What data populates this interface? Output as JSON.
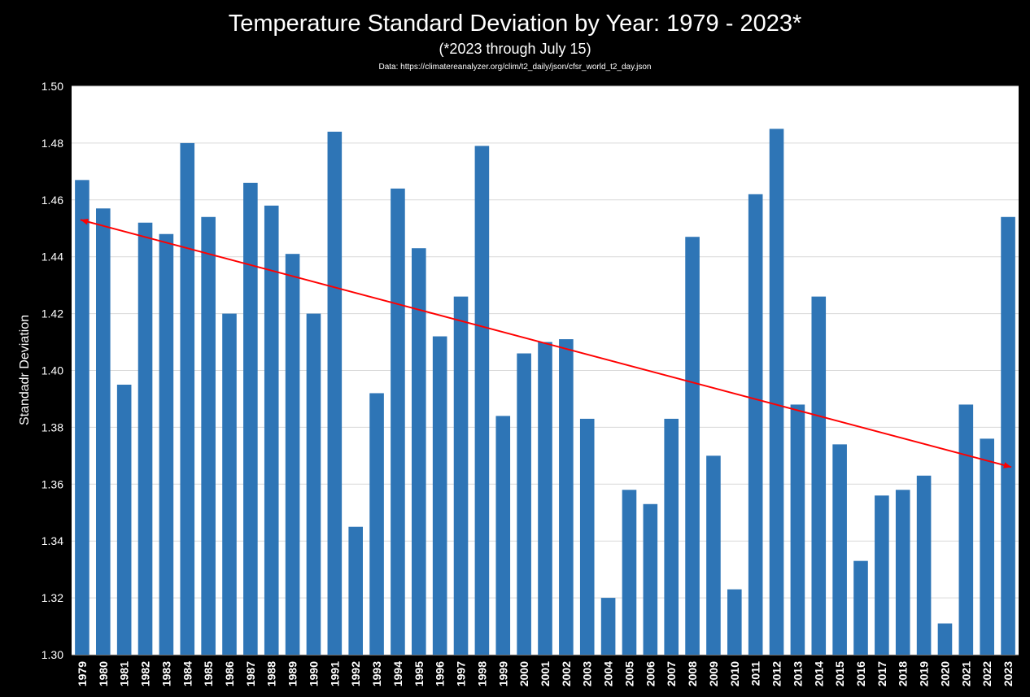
{
  "chart_data": {
    "type": "bar",
    "title": "Temperature Standard Deviation by Year: 1979 - 2023*",
    "subtitle": "(*2023 through July 15)",
    "source_note": "Data: https://climatereanalyzer.org/clim/t2_daily/json/cfsr_world_t2_day.json",
    "xlabel": "",
    "ylabel": "Standadr Deviation",
    "ylim": [
      1.3,
      1.5
    ],
    "yticks": [
      1.3,
      1.32,
      1.34,
      1.36,
      1.38,
      1.4,
      1.42,
      1.44,
      1.46,
      1.48,
      1.5
    ],
    "ytick_labels": [
      "1.30",
      "1.32",
      "1.34",
      "1.36",
      "1.38",
      "1.40",
      "1.42",
      "1.44",
      "1.46",
      "1.48",
      "1.50"
    ],
    "grid": true,
    "legend": "none",
    "categories": [
      "1979",
      "1980",
      "1981",
      "1982",
      "1983",
      "1984",
      "1985",
      "1986",
      "1987",
      "1988",
      "1989",
      "1990",
      "1991",
      "1992",
      "1993",
      "1994",
      "1995",
      "1996",
      "1997",
      "1998",
      "1999",
      "2000",
      "2001",
      "2002",
      "2003",
      "2004",
      "2005",
      "2006",
      "2007",
      "2008",
      "2009",
      "2010",
      "2011",
      "2012",
      "2013",
      "2014",
      "2015",
      "2016",
      "2017",
      "2018",
      "2019",
      "2020",
      "2021",
      "2022",
      "2023"
    ],
    "series": [
      {
        "name": "Standard Deviation",
        "values": [
          1.467,
          1.457,
          1.395,
          1.452,
          1.448,
          1.48,
          1.454,
          1.42,
          1.466,
          1.458,
          1.441,
          1.42,
          1.484,
          1.345,
          1.392,
          1.464,
          1.443,
          1.412,
          1.426,
          1.479,
          1.384,
          1.406,
          1.41,
          1.411,
          1.383,
          1.32,
          1.358,
          1.353,
          1.383,
          1.447,
          1.37,
          1.323,
          1.462,
          1.485,
          1.388,
          1.426,
          1.374,
          1.333,
          1.356,
          1.358,
          1.363,
          1.311,
          1.388,
          1.376,
          1.454
        ]
      }
    ],
    "trend_line": {
      "name": "Linear trend",
      "start": {
        "x": "1979",
        "y": 1.453
      },
      "end": {
        "x": "2023",
        "y": 1.366
      }
    },
    "colors": {
      "background": "#000000",
      "plot_area": "#ffffff",
      "bar": "#2e75b6",
      "gridline": "#d9d9d9",
      "trend": "#ff0000",
      "text": "#ffffff"
    }
  }
}
